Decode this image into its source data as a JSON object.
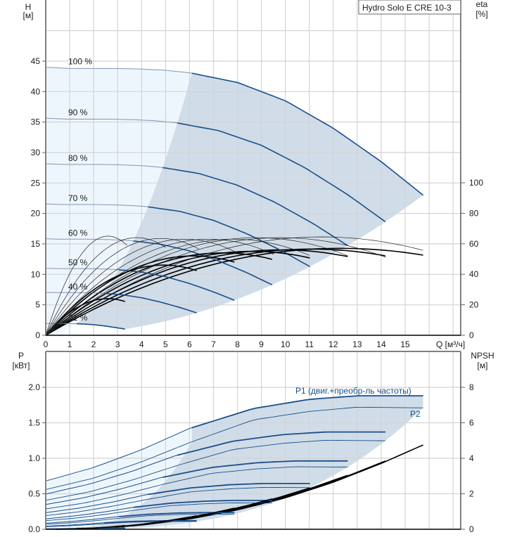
{
  "chart_data": [
    {
      "type": "line",
      "title": "Hydro Solo E CRE 10-3",
      "xlabel": "Q [м³/ч]",
      "ylabel": "H",
      "ylabel_unit": "[м]",
      "y2label": "eta",
      "y2label_unit": "[%]",
      "xlim": [
        0,
        17.3
      ],
      "ylim": [
        0,
        55
      ],
      "y2lim": [
        0,
        220
      ],
      "x_ticks": [
        "0",
        "1",
        "2",
        "3",
        "4",
        "5",
        "6",
        "7",
        "8",
        "9",
        "10",
        "11",
        "12",
        "13",
        "14",
        "15"
      ],
      "y_ticks": [
        "0",
        "5",
        "10",
        "15",
        "20",
        "25",
        "30",
        "35",
        "40",
        "45"
      ],
      "y2_ticks": [
        "0",
        "20",
        "40",
        "60",
        "80",
        "100"
      ],
      "grid": true,
      "speed_labels": [
        "100 %",
        "90 %",
        "80 %",
        "70 %",
        "60 %",
        "50 %",
        "40 %",
        "21 %"
      ],
      "speeds": [
        1.0,
        0.9,
        0.8,
        0.7,
        0.6,
        0.5,
        0.4,
        0.21
      ],
      "h_curve_full_speed": {
        "q": [
          0,
          1,
          2,
          3,
          4,
          5,
          6,
          8,
          10,
          12,
          14,
          15.75
        ],
        "h": [
          44,
          43.8,
          43.8,
          43.8,
          43.7,
          43.5,
          43.1,
          41.5,
          38.5,
          34,
          28.5,
          23
        ]
      },
      "operating_range_boundary_q_at_full_speed": 6.1,
      "eta_curves_per_speed": {
        "peak_q_full_speed": 12.3,
        "peak_eta": [
          57,
          56.5,
          56,
          55,
          54,
          52,
          46,
          24
        ]
      },
      "eta_curves_thin": [
        {
          "peak_q": 2.6,
          "peak_eta": 65,
          "end_q": 3.4
        },
        {
          "peak_q": 3.8,
          "peak_eta": 64,
          "end_q": 5.0
        },
        {
          "peak_q": 4.8,
          "peak_eta": 63.5,
          "end_q": 6.4
        },
        {
          "peak_q": 5.8,
          "peak_eta": 63,
          "end_q": 7.9
        },
        {
          "peak_q": 6.8,
          "peak_eta": 63,
          "end_q": 9.5
        },
        {
          "peak_q": 7.8,
          "peak_eta": 63,
          "end_q": 11.0
        },
        {
          "peak_q": 8.8,
          "peak_eta": 64,
          "end_q": 12.6
        },
        {
          "peak_q": 9.8,
          "peak_eta": 64,
          "end_q": 14.2
        },
        {
          "peak_q": 11.5,
          "peak_eta": 64.5,
          "end_q": 15.75
        }
      ]
    },
    {
      "type": "line",
      "xlabel": "Q [м³/ч]",
      "ylabel": "P",
      "ylabel_unit": "[кВт]",
      "y2label": "NPSH",
      "y2label_unit": "[м]",
      "xlim": [
        0,
        17.3
      ],
      "ylim": [
        0,
        2.5
      ],
      "y2lim": [
        0,
        10
      ],
      "y_ticks": [
        "0.0",
        "0.5",
        "1.0",
        "1.5",
        "2.0"
      ],
      "y2_ticks": [
        "0",
        "2",
        "4",
        "6",
        "8"
      ],
      "grid": true,
      "legend": [
        {
          "name": "P1 (двиг.+преобр-ль частоты)",
          "placement": "top-right"
        },
        {
          "name": "P2",
          "placement": "right"
        }
      ],
      "p1_full_speed": {
        "q": [
          0,
          2,
          4,
          6,
          8.66,
          11,
          13,
          15.75
        ],
        "p": [
          0.68,
          0.87,
          1.12,
          1.42,
          1.7,
          1.83,
          1.88,
          1.88
        ]
      },
      "p2_full_speed": {
        "q": [
          0,
          2,
          4,
          6,
          8.66,
          11,
          13,
          15.75
        ],
        "p": [
          0.56,
          0.72,
          0.95,
          1.22,
          1.54,
          1.66,
          1.72,
          1.71
        ]
      },
      "npsh_full_speed": {
        "q": [
          2,
          4,
          6,
          8,
          10,
          12,
          14,
          15.75
        ],
        "npsh": [
          0.05,
          0.24,
          0.58,
          1.09,
          1.77,
          2.65,
          3.71,
          4.75
        ]
      }
    }
  ],
  "colors": {
    "curve": "#1a4f8a",
    "curve_light": "#7f95b5",
    "region_dark": "#d0dce8",
    "region_light": "#eef6fd",
    "eta": "#000000"
  }
}
